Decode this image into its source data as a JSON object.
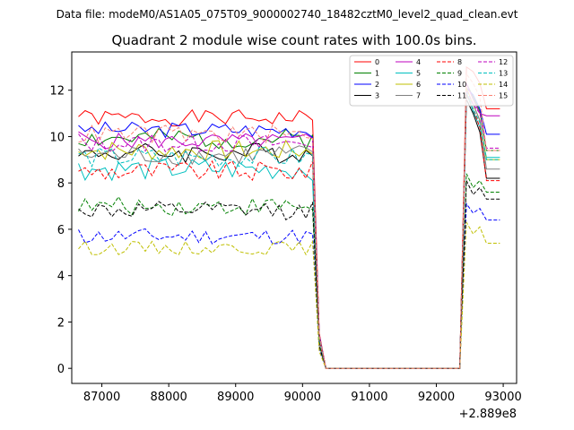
{
  "figure": {
    "suptitle": "Data file: modeM0/AS1A05_075T09_9000002740_18482cztM0_level2_quad_clean.evt"
  },
  "chart_data": {
    "type": "line",
    "title": "Quadrant 2 module wise count rates with 100.0s bins.",
    "xlabel": "",
    "ylabel": "",
    "x_offset_label": "+2.889e8",
    "xlim": [
      86550,
      93200
    ],
    "ylim": [
      -0.65,
      13.65
    ],
    "x_ticks": [
      87000,
      88000,
      89000,
      90000,
      91000,
      92000,
      93000
    ],
    "y_ticks": [
      0,
      2,
      4,
      6,
      8,
      10,
      12
    ],
    "grid": false,
    "legend_placement": "top-right",
    "legend_columns": 4,
    "x": {
      "start": 86650,
      "step": 100,
      "count": 64
    },
    "series": [
      {
        "name": "0",
        "color": "#ff0000",
        "style": "solid",
        "base": 10.8,
        "amp": 0.35,
        "seed": 1,
        "tail": [
          13.0,
          12.8,
          12.3,
          11.2
        ]
      },
      {
        "name": "1",
        "color": "#008000",
        "style": "solid",
        "base": 9.9,
        "amp": 0.45,
        "seed": 2,
        "tail": [
          12.3,
          11.7,
          11.1,
          9.4
        ]
      },
      {
        "name": "2",
        "color": "#0000ff",
        "style": "solid",
        "base": 10.3,
        "amp": 0.35,
        "seed": 3,
        "tail": [
          12.1,
          11.8,
          11.2,
          10.1
        ]
      },
      {
        "name": "3",
        "color": "#000000",
        "style": "solid",
        "base": 9.3,
        "amp": 0.45,
        "seed": 4,
        "tail": [
          11.6,
          11.0,
          10.2,
          8.2
        ]
      },
      {
        "name": "4",
        "color": "#bf00bf",
        "style": "solid",
        "base": 9.8,
        "amp": 0.35,
        "seed": 5,
        "tail": [
          12.3,
          11.6,
          11.0,
          10.9
        ]
      },
      {
        "name": "5",
        "color": "#00bfbf",
        "style": "solid",
        "base": 8.6,
        "amp": 0.5,
        "seed": 6,
        "tail": [
          11.9,
          11.1,
          10.4,
          9.1
        ]
      },
      {
        "name": "6",
        "color": "#bfbf00",
        "style": "solid",
        "base": 9.4,
        "amp": 0.45,
        "seed": 7,
        "tail": [
          12.1,
          11.4,
          10.7,
          9.0
        ]
      },
      {
        "name": "7",
        "color": "#808080",
        "style": "solid",
        "base": 9.2,
        "amp": 0.45,
        "seed": 8,
        "tail": [
          11.8,
          11.4,
          10.7,
          8.6
        ]
      },
      {
        "name": "8",
        "color": "#ff0000",
        "style": "dashed",
        "base": 8.5,
        "amp": 0.45,
        "seed": 9,
        "tail": [
          11.8,
          11.2,
          10.4,
          8.1
        ]
      },
      {
        "name": "9",
        "color": "#008000",
        "style": "dashed",
        "base": 7.0,
        "amp": 0.4,
        "seed": 10,
        "tail": [
          8.4,
          7.8,
          8.1,
          7.6
        ]
      },
      {
        "name": "10",
        "color": "#0000ff",
        "style": "dashed",
        "base": 5.7,
        "amp": 0.35,
        "seed": 11,
        "tail": [
          7.1,
          6.7,
          6.9,
          6.4
        ]
      },
      {
        "name": "11",
        "color": "#000000",
        "style": "dashed",
        "base": 6.8,
        "amp": 0.4,
        "seed": 12,
        "tail": [
          8.1,
          7.5,
          7.8,
          7.3
        ]
      },
      {
        "name": "12",
        "color": "#bf00bf",
        "style": "dashed",
        "base": 9.7,
        "amp": 0.4,
        "seed": 13,
        "tail": [
          12.0,
          11.4,
          11.0,
          9.5
        ]
      },
      {
        "name": "13",
        "color": "#00bfbf",
        "style": "dashed",
        "base": 9.1,
        "amp": 0.45,
        "seed": 14,
        "tail": [
          11.9,
          11.2,
          10.6,
          9.0
        ]
      },
      {
        "name": "14",
        "color": "#bfbf00",
        "style": "dashed",
        "base": 5.2,
        "amp": 0.3,
        "seed": 15,
        "tail": [
          6.3,
          5.8,
          6.1,
          5.4
        ]
      },
      {
        "name": "15",
        "color": "#fa8072",
        "style": "dashed",
        "base": 10.1,
        "amp": 0.4,
        "seed": 16,
        "tail": [
          12.7,
          12.3,
          11.7,
          9.4
        ]
      }
    ]
  }
}
